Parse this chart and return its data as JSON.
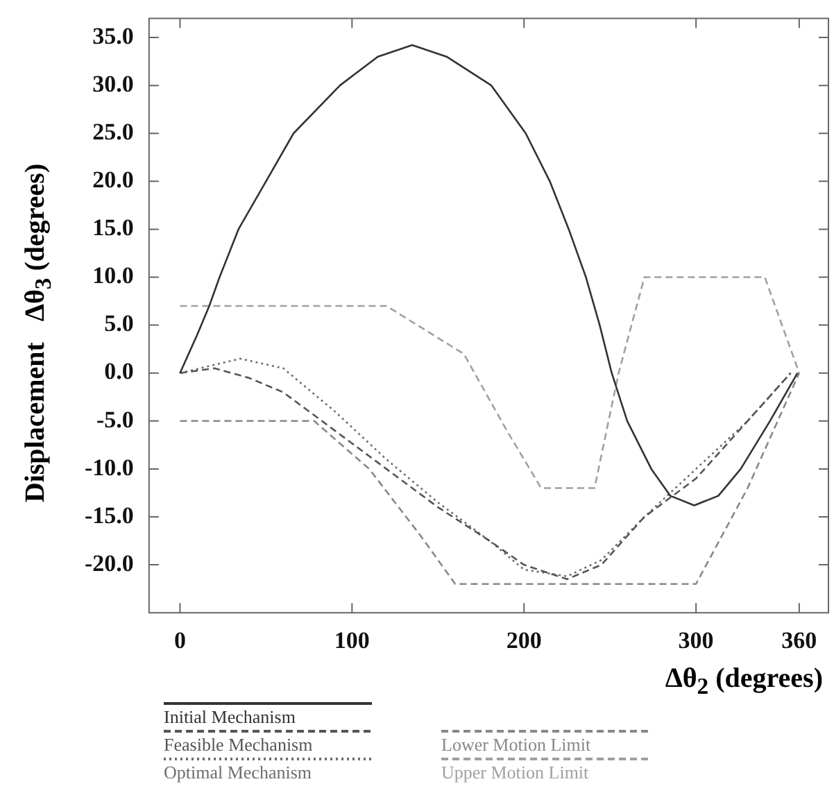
{
  "chart_data": {
    "type": "line",
    "xlabel": "Δθ$_{2}$ (degrees)",
    "ylabel": "Displacement   Δθ$_{3}$ (degrees)",
    "xlim": [
      -18,
      377
    ],
    "ylim": [
      -25,
      37
    ],
    "xticks": [
      0,
      100,
      200,
      300,
      360
    ],
    "yticks": [
      {
        "value": -20,
        "label": "-20.0"
      },
      {
        "value": -15,
        "label": "-15.0"
      },
      {
        "value": -10,
        "label": "-10.0"
      },
      {
        "value": -5,
        "label": "-5.0"
      },
      {
        "value": 0,
        "label": "0.0"
      },
      {
        "value": 5,
        "label": "5.0"
      },
      {
        "value": 10,
        "label": "10.0"
      },
      {
        "value": 15,
        "label": "15.0"
      },
      {
        "value": 20,
        "label": "20.0"
      },
      {
        "value": 25,
        "label": "25.0"
      },
      {
        "value": 30,
        "label": "30.0"
      },
      {
        "value": 35,
        "label": "35.0"
      }
    ],
    "grid": false,
    "legend": "bottom",
    "marker": "none",
    "series": [
      {
        "name": "Initial Mechanism",
        "color": "#333333",
        "line_style": "solid",
        "x": [
          0,
          10,
          17,
          23,
          34,
          50,
          66,
          93,
          115,
          135,
          155,
          181,
          201,
          215,
          226,
          236,
          244,
          251,
          260,
          274,
          285,
          299,
          313,
          326,
          343,
          359
        ],
        "values": [
          0,
          4,
          7,
          10,
          15,
          20,
          25,
          30,
          33,
          34.2,
          33,
          30,
          25,
          20,
          15,
          10,
          5,
          0,
          -5,
          -10,
          -12.8,
          -13.8,
          -12.8,
          -10,
          -5,
          0
        ]
      },
      {
        "name": "Feasible Mechanism",
        "color": "#555555",
        "line_style": "dashed",
        "x": [
          0,
          20,
          40,
          60,
          90,
          120,
          150,
          180,
          200,
          225,
          245,
          270,
          300,
          330,
          355
        ],
        "values": [
          0,
          0.5,
          -0.5,
          -2,
          -6,
          -10,
          -14,
          -17.5,
          -20,
          -21.5,
          -20,
          -15,
          -11,
          -5,
          0
        ]
      },
      {
        "name": "Optimal Mechanism",
        "color": "#6e6e6e",
        "line_style": "dotted",
        "x": [
          0,
          35,
          60,
          90,
          120,
          150,
          180,
          200,
          225,
          245,
          270,
          300,
          330,
          355
        ],
        "values": [
          0,
          1.5,
          0.5,
          -4,
          -9,
          -13.5,
          -17.5,
          -20.5,
          -21.2,
          -19.5,
          -15,
          -10,
          -5,
          0
        ]
      },
      {
        "name": "Lower Motion Limit",
        "color": "#888888",
        "line_style": "dashed",
        "x": [
          0,
          78,
          110,
          140,
          160,
          300,
          330,
          360
        ],
        "values": [
          -5,
          -5,
          -10,
          -17,
          -22,
          -22,
          -12,
          0
        ]
      },
      {
        "name": "Upper Motion Limit",
        "color": "#a0a0a0",
        "line_style": "dashed",
        "x": [
          0,
          120,
          165,
          190,
          210,
          241,
          255,
          270,
          340,
          360
        ],
        "values": [
          7,
          7,
          2,
          -6,
          -12,
          -12,
          0,
          10,
          10,
          0
        ]
      }
    ]
  }
}
